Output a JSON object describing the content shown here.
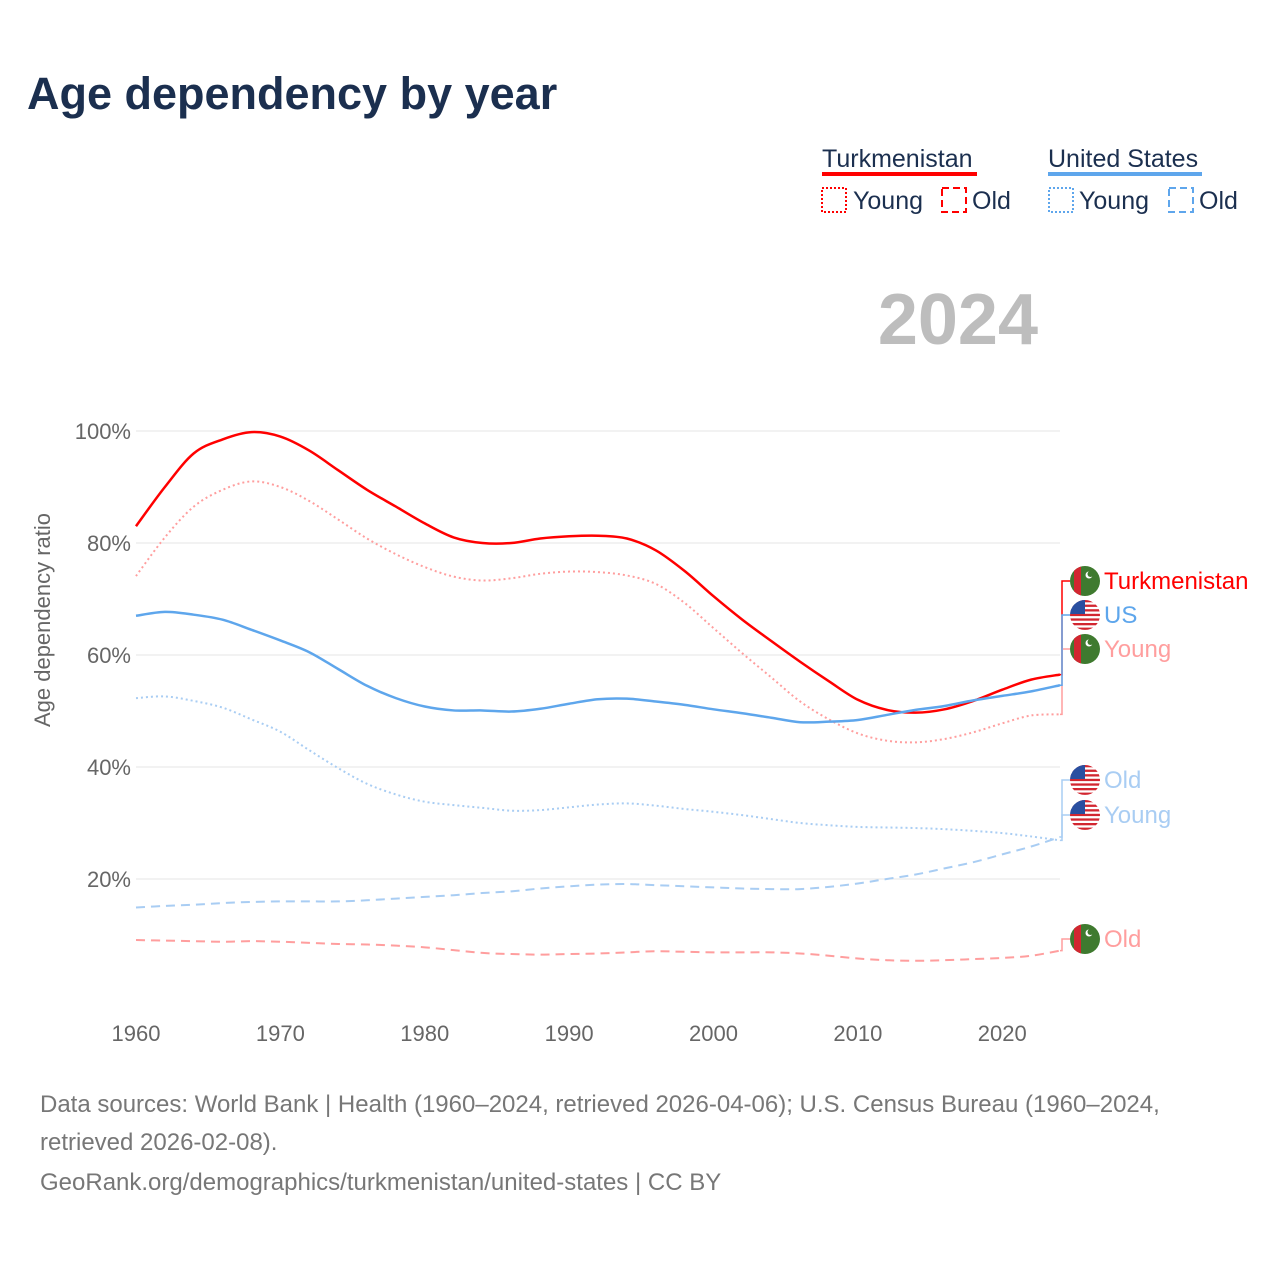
{
  "title": "Age dependency by year",
  "year_badge": "2024",
  "legend": {
    "groups": [
      {
        "name": "Turkmenistan",
        "color": "#ff0000",
        "items": [
          "Young",
          "Old"
        ]
      },
      {
        "name": "United States",
        "color": "#5ea6ec",
        "items": [
          "Young",
          "Old"
        ]
      }
    ]
  },
  "footer": {
    "sources": "Data sources: World Bank | Health (1960–2024, retrieved 2026-04-06); U.S. Census Bureau (1960–2024, retrieved 2026-02-08).",
    "link": "GeoRank.org/demographics/turkmenistan/united-states | CC BY"
  },
  "chart_data": {
    "type": "line",
    "title": "Age dependency by year",
    "xlabel": "",
    "ylabel": "Age dependency ratio",
    "xlim": [
      1960,
      2024
    ],
    "ylim": [
      0,
      100
    ],
    "x_ticks": [
      1960,
      1970,
      1980,
      1990,
      2000,
      2010,
      2020
    ],
    "x_tick_labels": [
      "1960",
      "1970",
      "1980",
      "1990",
      "2000",
      "2010",
      "2020"
    ],
    "y_ticks": [
      20,
      40,
      60,
      80,
      100
    ],
    "y_tick_labels": [
      "20%",
      "40%",
      "60%",
      "80%",
      "100%"
    ],
    "grid": true,
    "x": [
      1960,
      1962,
      1964,
      1966,
      1968,
      1970,
      1972,
      1974,
      1976,
      1978,
      1980,
      1982,
      1984,
      1986,
      1988,
      1990,
      1992,
      1994,
      1996,
      1998,
      2000,
      2002,
      2004,
      2006,
      2008,
      2010,
      2012,
      2014,
      2016,
      2018,
      2020,
      2022,
      2024
    ],
    "series": [
      {
        "name": "Turkmenistan",
        "end_label": "Turkmenistan",
        "country": "tm",
        "color": "#ff0000",
        "dash": "solid",
        "values": [
          83.0,
          90.0,
          96.0,
          98.5,
          99.8,
          99.0,
          96.5,
          93.0,
          89.5,
          86.5,
          83.5,
          81.0,
          80.0,
          80.0,
          80.8,
          81.2,
          81.3,
          80.8,
          78.7,
          75.0,
          70.5,
          66.3,
          62.5,
          58.8,
          55.3,
          52.0,
          50.2,
          49.7,
          50.3,
          51.8,
          53.8,
          55.6,
          56.5
        ]
      },
      {
        "name": "Turkmenistan Young",
        "end_label": "Young",
        "country": "tm",
        "color": "#ff9e9e",
        "dash": "dotted",
        "values": [
          74.1,
          81.0,
          86.5,
          89.5,
          91.0,
          90.0,
          87.5,
          84.2,
          80.8,
          78.0,
          75.7,
          74.0,
          73.3,
          73.7,
          74.5,
          74.9,
          74.8,
          74.2,
          72.7,
          69.3,
          64.8,
          60.3,
          56.0,
          51.7,
          48.5,
          46.0,
          44.7,
          44.4,
          45.0,
          46.2,
          47.8,
          49.2,
          49.4
        ]
      },
      {
        "name": "Turkmenistan Old",
        "end_label": "Old",
        "country": "tm",
        "color": "#ff9e9e",
        "dash": "dashed",
        "values": [
          9.1,
          9.0,
          8.9,
          8.8,
          8.9,
          8.8,
          8.6,
          8.4,
          8.3,
          8.1,
          7.8,
          7.3,
          6.8,
          6.6,
          6.5,
          6.6,
          6.7,
          6.9,
          7.1,
          7.0,
          6.9,
          6.9,
          6.9,
          6.7,
          6.3,
          5.8,
          5.5,
          5.4,
          5.5,
          5.7,
          5.9,
          6.3,
          7.2
        ]
      },
      {
        "name": "US",
        "end_label": "US",
        "country": "us",
        "color": "#5ea6ec",
        "dash": "solid",
        "values": [
          67.0,
          67.7,
          67.2,
          66.3,
          64.5,
          62.6,
          60.5,
          57.5,
          54.5,
          52.3,
          50.8,
          50.1,
          50.1,
          49.9,
          50.4,
          51.3,
          52.1,
          52.2,
          51.7,
          51.1,
          50.3,
          49.6,
          48.8,
          48.0,
          48.1,
          48.4,
          49.3,
          50.2,
          50.9,
          51.9,
          52.7,
          53.5,
          54.6
        ]
      },
      {
        "name": "United States Young",
        "end_label": "Young",
        "country": "us",
        "color": "#a9cdf3",
        "dash": "dotted",
        "values": [
          52.3,
          52.6,
          51.8,
          50.6,
          48.5,
          46.3,
          43.0,
          39.8,
          37.0,
          35.1,
          33.8,
          33.2,
          32.7,
          32.2,
          32.3,
          32.8,
          33.3,
          33.5,
          33.1,
          32.5,
          32.0,
          31.4,
          30.7,
          30.0,
          29.6,
          29.3,
          29.2,
          29.1,
          28.9,
          28.6,
          28.2,
          27.6,
          26.9
        ]
      },
      {
        "name": "United States Old",
        "end_label": "Old",
        "country": "us",
        "color": "#a9cdf3",
        "dash": "dashed",
        "values": [
          14.9,
          15.2,
          15.4,
          15.7,
          15.9,
          16.0,
          16.0,
          16.0,
          16.2,
          16.5,
          16.8,
          17.1,
          17.5,
          17.8,
          18.3,
          18.7,
          19.0,
          19.1,
          18.9,
          18.7,
          18.5,
          18.3,
          18.2,
          18.2,
          18.6,
          19.2,
          20.0,
          20.8,
          21.9,
          23.0,
          24.4,
          25.8,
          27.5
        ]
      }
    ]
  }
}
